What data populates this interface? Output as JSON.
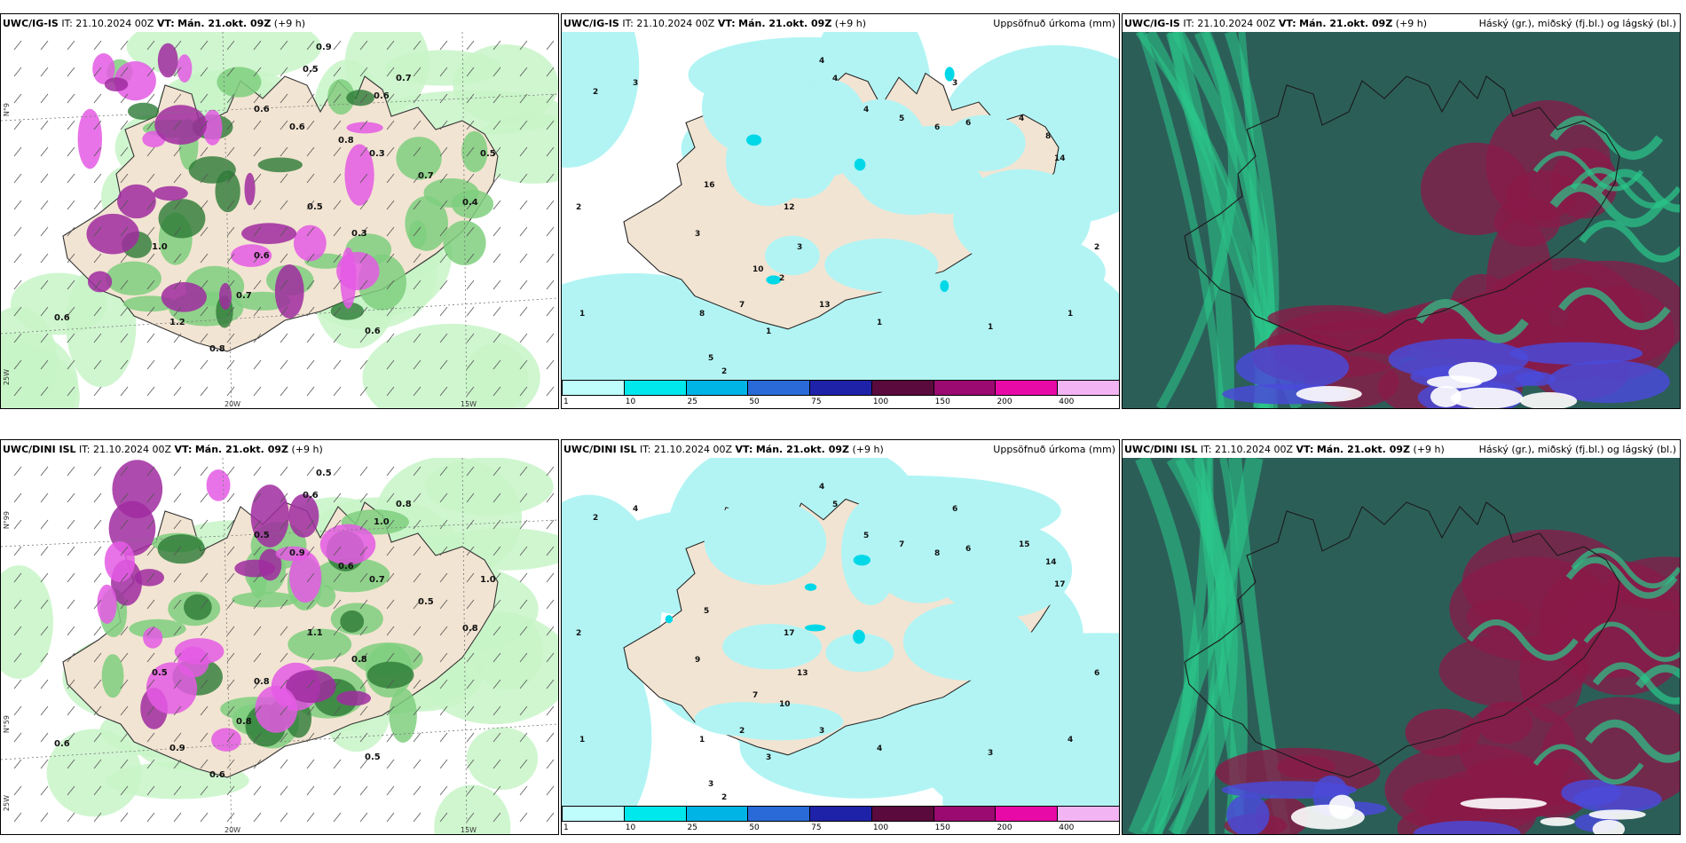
{
  "rows": [
    {
      "model_label": "UWC/IG-IS",
      "panels": [
        {
          "kind": "cloud-precip",
          "model": "UWC/IG-IS",
          "it_label": "IT:",
          "it_value": "21.10.2024 00Z",
          "vt_label": "VT:",
          "vt_value": "Mán. 21.okt. 09Z",
          "lead": "(+9 h)",
          "right_title": "",
          "axis_labels": [
            "N°9",
            "N°9",
            "25W",
            "20W",
            "15W"
          ],
          "values": [
            "0.9",
            "0.5",
            "0.6",
            "0.7",
            "0.6",
            "0.6",
            "0.8",
            "0.3",
            "0.7",
            "0.5",
            "0.4",
            "0.6",
            "1.2",
            "0.6",
            "0.7",
            "0.8",
            "0.6",
            "1.0",
            "0.5",
            "0.3"
          ]
        },
        {
          "kind": "accum-precip",
          "model": "UWC/IG-IS",
          "it_label": "IT:",
          "it_value": "21.10.2024 00Z",
          "vt_label": "VT:",
          "vt_value": "Mán. 21.okt. 09Z",
          "lead": "(+9 h)",
          "right_title": "Uppsöfnuð úrkoma (mm)",
          "values": [
            "3",
            "2",
            "4",
            "4",
            "3",
            "4",
            "5",
            "6",
            "6",
            "4",
            "8",
            "14",
            "16",
            "12",
            "3",
            "2",
            "3",
            "10",
            "13",
            "7",
            "8",
            "5",
            "2",
            "1",
            "1",
            "1",
            "2",
            "1",
            "2",
            "1"
          ]
        },
        {
          "kind": "cloud-layers",
          "model": "UWC/IG-IS",
          "it_label": "IT:",
          "it_value": "21.10.2024 00Z",
          "vt_label": "VT:",
          "vt_value": "Mán. 21.okt. 09Z",
          "lead": "(+9 h)",
          "right_title": "Háský (gr.), miðský (fj.bl.) og lágský (bl.)"
        }
      ]
    },
    {
      "model_label": "UWC/DINI ISL",
      "panels": [
        {
          "kind": "cloud-precip",
          "model": "UWC/DINI ISL",
          "it_label": "IT:",
          "it_value": "21.10.2024 00Z",
          "vt_label": "VT:",
          "vt_value": "Mán. 21.okt. 09Z",
          "lead": "(+9 h)",
          "right_title": "",
          "axis_labels": [
            "N°99",
            "N°59",
            "25W",
            "20W",
            "15W"
          ],
          "values": [
            "0.5",
            "0.6",
            "1.0",
            "0.8",
            "0.5",
            "0.9",
            "0.6",
            "0.7",
            "0.5",
            "1.0",
            "0.8",
            "0.6",
            "0.9",
            "0.5",
            "0.8",
            "0.6",
            "0.8",
            "0.5",
            "1.1",
            "0.8"
          ]
        },
        {
          "kind": "accum-precip",
          "model": "UWC/DINI ISL",
          "it_label": "IT:",
          "it_value": "21.10.2024 00Z",
          "vt_label": "VT:",
          "vt_value": "Mán. 21.okt. 09Z",
          "lead": "(+9 h)",
          "right_title": "Uppsöfnuð úrkoma (mm)",
          "values": [
            "4",
            "2",
            "4",
            "5",
            "6",
            "5",
            "7",
            "8",
            "6",
            "15",
            "14",
            "17",
            "5",
            "17",
            "13",
            "10",
            "9",
            "7",
            "3",
            "2",
            "1",
            "3",
            "2",
            "4",
            "3",
            "4",
            "6",
            "1",
            "2",
            "3"
          ]
        },
        {
          "kind": "cloud-layers",
          "model": "UWC/DINI ISL",
          "it_label": "IT:",
          "it_value": "21.10.2024 00Z",
          "vt_label": "VT:",
          "vt_value": "Mán. 21.okt. 09Z",
          "lead": "(+9 h)",
          "right_title": "Háský (gr.), miðský (fj.bl.) og lágský (bl.)"
        }
      ]
    }
  ],
  "colorbar": {
    "ticks": [
      "1",
      "10",
      "25",
      "50",
      "75",
      "100",
      "150",
      "200",
      "400"
    ],
    "colors": [
      "#bffcfc",
      "#00e8ec",
      "#00b4e6",
      "#2a6ad8",
      "#1e22a8",
      "#5a0a3c",
      "#9a0a70",
      "#e80aa6",
      "#f2b4f2"
    ]
  },
  "colors": {
    "land": "#f2e4d2",
    "precip_light": "#c8f5c8",
    "precip_mid": "#7fcf7f",
    "precip_dark": "#2c7a36",
    "precip_purple": "#a02ca0",
    "precip_magenta": "#e45ae4",
    "accum_sea": "#b2f4f4",
    "cloud_dark": "#2c5e58",
    "cloud_green": "#29c88a",
    "cloud_red": "#8a1a48",
    "cloud_blue": "#4a4ad8"
  }
}
